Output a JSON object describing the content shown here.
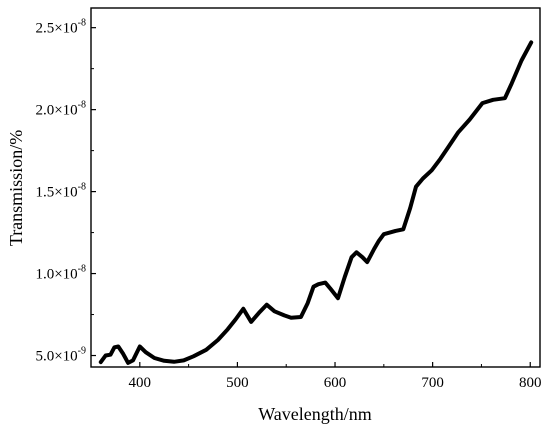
{
  "chart_data": {
    "type": "line",
    "xlabel": "Wavelength/nm",
    "ylabel": "Transmission/%",
    "xlim": [
      350,
      810
    ],
    "ylim": [
      4.3e-09,
      2.62e-08
    ],
    "x_ticks": [
      400,
      500,
      600,
      700,
      800
    ],
    "x_tick_labels": [
      "400",
      "500",
      "600",
      "700",
      "800"
    ],
    "y_ticks": [
      5e-09,
      1e-08,
      1.5e-08,
      2e-08,
      2.5e-08
    ],
    "y_tick_labels": [
      {
        "base": "5.0×10",
        "exp": "-9"
      },
      {
        "base": "1.0×10",
        "exp": "-8"
      },
      {
        "base": "1.5×10",
        "exp": "-8"
      },
      {
        "base": "2.0×10",
        "exp": "-8"
      },
      {
        "base": "2.5×10",
        "exp": "-8"
      }
    ],
    "grid": false,
    "legend": "none",
    "line_color": "#000000",
    "series": [
      {
        "x": [
          360,
          365,
          370,
          374,
          378,
          383,
          388,
          393,
          400,
          406,
          415,
          425,
          435,
          445,
          455,
          468,
          480,
          490,
          498,
          506,
          514,
          522,
          530,
          538,
          548,
          555,
          565,
          572,
          578,
          583,
          590,
          595,
          603,
          610,
          617,
          622,
          628,
          633,
          640,
          645,
          650,
          656,
          662,
          670,
          677,
          683,
          690,
          699,
          708,
          716,
          726,
          738,
          751,
          762,
          774,
          781,
          791,
          801
        ],
        "y": [
          4.6e-09,
          5e-09,
          5.05e-09,
          5.5e-09,
          5.55e-09,
          5.1e-09,
          4.55e-09,
          4.7e-09,
          5.55e-09,
          5.2e-09,
          4.85e-09,
          4.68e-09,
          4.62e-09,
          4.7e-09,
          4.95e-09,
          5.35e-09,
          5.95e-09,
          6.6e-09,
          7.2e-09,
          7.85e-09,
          7.05e-09,
          7.6e-09,
          8.1e-09,
          7.7e-09,
          7.45e-09,
          7.3e-09,
          7.35e-09,
          8.2e-09,
          9.2e-09,
          9.35e-09,
          9.45e-09,
          9.1e-09,
          8.5e-09,
          9.8e-09,
          1.1e-08,
          1.13e-08,
          1.1e-08,
          1.07e-08,
          1.15e-08,
          1.2e-08,
          1.24e-08,
          1.25e-08,
          1.26e-08,
          1.27e-08,
          1.4e-08,
          1.53e-08,
          1.58e-08,
          1.63e-08,
          1.7e-08,
          1.77e-08,
          1.86e-08,
          1.94e-08,
          2.04e-08,
          2.06e-08,
          2.07e-08,
          2.16e-08,
          2.3e-08,
          2.41e-08
        ]
      }
    ]
  }
}
